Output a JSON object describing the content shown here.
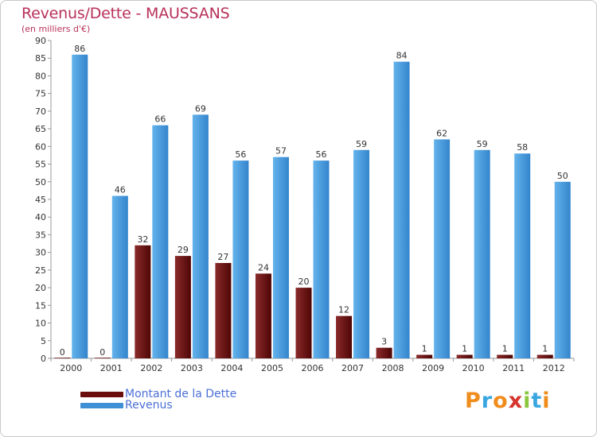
{
  "title": "Revenus/Dette - MAUSSANS",
  "subtitle": "(en milliers d'€)",
  "logo": {
    "text": "Proxiti",
    "colors": [
      "#f08c1c",
      "#3aa6e0",
      "#f08c1c",
      "#d6342c",
      "#8cc63f",
      "#3aa6e0",
      "#f08c1c"
    ]
  },
  "legend": [
    {
      "label": "Montant de la Dette",
      "color": "#6b0d0d"
    },
    {
      "label": "Revenus",
      "color": "#3d8fd6"
    }
  ],
  "chart_data": {
    "type": "bar",
    "title": "Revenus/Dette - MAUSSANS",
    "subtitle": "(en milliers d'€)",
    "xlabel": "",
    "ylabel": "",
    "ylim": [
      0,
      90
    ],
    "ytick_step": 5,
    "grid": false,
    "legend_position": "bottom-left",
    "categories": [
      "2000",
      "2001",
      "2002",
      "2003",
      "2004",
      "2005",
      "2006",
      "2007",
      "2008",
      "2009",
      "2010",
      "2011",
      "2012"
    ],
    "series": [
      {
        "name": "Montant de la Dette",
        "color_top": "#8a2a2a",
        "color_bottom": "#4f0606",
        "values": [
          0,
          0,
          32,
          29,
          27,
          24,
          20,
          12,
          3,
          1,
          1,
          1,
          1
        ]
      },
      {
        "name": "Revenus",
        "color_top": "#64b3ec",
        "color_bottom": "#3384cc",
        "values": [
          86,
          46,
          66,
          69,
          56,
          57,
          56,
          59,
          84,
          62,
          59,
          58,
          50
        ]
      }
    ]
  }
}
